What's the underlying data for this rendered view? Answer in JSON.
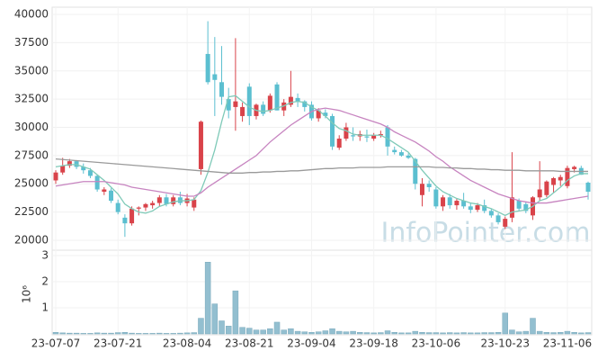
{
  "chart_data": {
    "type": "candlestick",
    "watermark": "InfoPointer.com",
    "categories": [
      "23-07-07",
      null,
      null,
      null,
      null,
      null,
      null,
      null,
      null,
      "23-07-21",
      null,
      null,
      null,
      null,
      null,
      null,
      null,
      null,
      null,
      "23-08-04",
      null,
      null,
      null,
      null,
      null,
      null,
      null,
      null,
      "23-08-21",
      null,
      null,
      null,
      null,
      null,
      null,
      null,
      null,
      "23-09-04",
      null,
      null,
      null,
      null,
      null,
      null,
      null,
      null,
      "23-09-18",
      null,
      null,
      null,
      null,
      null,
      null,
      null,
      null,
      "23-10-06",
      null,
      null,
      null,
      null,
      null,
      null,
      null,
      null,
      null,
      "23-10-23",
      null,
      null,
      null,
      null,
      null,
      null,
      null,
      null,
      "23-11-06",
      null,
      null,
      null
    ],
    "open": [
      25300,
      26000,
      26600,
      27000,
      26500,
      26200,
      25700,
      24300,
      24400,
      23300,
      22000,
      21500,
      22800,
      22900,
      23100,
      23300,
      23800,
      23200,
      23800,
      23300,
      22900,
      26300,
      36500,
      34700,
      34000,
      32500,
      31800,
      31000,
      33600,
      31000,
      32000,
      31500,
      33800,
      31500,
      32000,
      32600,
      32300,
      32000,
      30800,
      31300,
      31000,
      28200,
      29000,
      29300,
      29200,
      29200,
      29000,
      29300,
      30000,
      28000,
      27800,
      27500,
      27200,
      24000,
      25000,
      24500,
      23000,
      23800,
      23100,
      23500,
      23000,
      22700,
      23100,
      22600,
      22200,
      21200,
      22000,
      23500,
      23200,
      22200,
      23800,
      24000,
      24900,
      25300,
      24800,
      26300,
      26400,
      25100
    ],
    "high": [
      26200,
      27300,
      27200,
      27100,
      26800,
      26400,
      25800,
      24700,
      24600,
      23600,
      22300,
      23000,
      23000,
      23300,
      23500,
      24000,
      24100,
      24000,
      24300,
      24100,
      23800,
      30600,
      39400,
      38000,
      37200,
      33500,
      37900,
      32200,
      33900,
      32100,
      32300,
      33000,
      34000,
      32500,
      35000,
      33000,
      32400,
      32300,
      31700,
      31600,
      31200,
      29300,
      30400,
      30000,
      29700,
      29800,
      29500,
      29700,
      30200,
      28300,
      28000,
      27700,
      27300,
      25500,
      25300,
      24700,
      24000,
      24100,
      23700,
      24200,
      23300,
      23300,
      23600,
      22800,
      22400,
      22100,
      27800,
      23700,
      23400,
      23900,
      27000,
      25300,
      25600,
      25800,
      26600,
      26600,
      26600,
      25200
    ],
    "low": [
      25000,
      25800,
      26400,
      26300,
      25900,
      25500,
      24300,
      24000,
      23300,
      22300,
      20300,
      21300,
      22200,
      22600,
      22800,
      23000,
      23000,
      23000,
      23100,
      23000,
      22600,
      25800,
      33800,
      31000,
      32000,
      30800,
      29700,
      30500,
      30200,
      30700,
      31000,
      31300,
      31500,
      31000,
      31800,
      31800,
      31400,
      30600,
      30500,
      30800,
      28000,
      28000,
      28800,
      28800,
      28800,
      28700,
      28800,
      29100,
      27500,
      27600,
      27400,
      27200,
      24500,
      23000,
      24300,
      22800,
      22600,
      22800,
      22700,
      22800,
      22400,
      22500,
      22400,
      22000,
      21400,
      21000,
      21600,
      22600,
      22400,
      21800,
      23500,
      23800,
      24200,
      24800,
      24600,
      26000,
      25800,
      23600
    ],
    "close": [
      26000,
      26600,
      27000,
      26500,
      26200,
      25700,
      24500,
      24500,
      23500,
      22500,
      21500,
      22800,
      22900,
      23200,
      23300,
      23800,
      23200,
      23800,
      23300,
      23700,
      23600,
      30500,
      34000,
      34200,
      32700,
      31500,
      32300,
      31800,
      31000,
      32000,
      31200,
      32800,
      31500,
      32200,
      32700,
      32300,
      31800,
      30800,
      31500,
      31000,
      28300,
      29000,
      30000,
      29200,
      29400,
      29100,
      29300,
      29400,
      28300,
      27800,
      27500,
      27300,
      25000,
      25000,
      24700,
      23000,
      23800,
      23100,
      23500,
      23000,
      22700,
      23100,
      22600,
      22200,
      21600,
      21900,
      23800,
      22800,
      22600,
      23800,
      24500,
      25200,
      25500,
      25600,
      26400,
      26500,
      25800,
      24300
    ],
    "up_color": "#d9434a",
    "down_color": "#5bbfd0",
    "ylim": [
      19120,
      40640
    ],
    "yticks": [
      20000,
      22500,
      25000,
      27500,
      30000,
      32500,
      35000,
      37500,
      40000
    ],
    "ma": [
      {
        "color": "#7fcab8",
        "values": [
          26500,
          26600,
          26700,
          26700,
          26500,
          26300,
          25800,
          25300,
          24700,
          24100,
          23200,
          22800,
          22500,
          22400,
          22600,
          23000,
          23200,
          23400,
          23500,
          23500,
          23600,
          24400,
          26000,
          28000,
          30500,
          32700,
          32800,
          32300,
          31800,
          31500,
          31400,
          31500,
          31700,
          31900,
          32200,
          32300,
          32200,
          31800,
          31500,
          31000,
          30400,
          29900,
          29700,
          29400,
          29300,
          29300,
          29300,
          29300,
          29000,
          28600,
          28200,
          27800,
          27000,
          26200,
          25500,
          24800,
          24300,
          24000,
          23700,
          23500,
          23300,
          23200,
          23000,
          22800,
          22500,
          22200,
          22500,
          22600,
          22700,
          23000,
          23500,
          23700,
          24200,
          24700,
          25300,
          25700,
          25900,
          25900
        ]
      },
      {
        "color": "#c784c0",
        "values": [
          24800,
          24900,
          25000,
          25100,
          25200,
          25200,
          25200,
          25200,
          25100,
          25000,
          24900,
          24700,
          24600,
          24500,
          24400,
          24300,
          24200,
          24100,
          24000,
          23900,
          23900,
          24200,
          24700,
          25100,
          25500,
          25900,
          26300,
          26700,
          27100,
          27500,
          28100,
          28700,
          29200,
          29700,
          30200,
          30600,
          31000,
          31400,
          31600,
          31700,
          31600,
          31500,
          31300,
          31100,
          30900,
          30700,
          30500,
          30300,
          30000,
          29600,
          29300,
          29000,
          28700,
          28300,
          27900,
          27400,
          27000,
          26500,
          26100,
          25700,
          25300,
          25000,
          24700,
          24400,
          24100,
          23900,
          23700,
          23500,
          23400,
          23300,
          23300,
          23300,
          23400,
          23500,
          23600,
          23700,
          23800,
          23900
        ]
      },
      {
        "color": "#9a9a9a",
        "values": [
          27200,
          27150,
          27100,
          27050,
          27000,
          26950,
          26900,
          26850,
          26800,
          26750,
          26700,
          26650,
          26600,
          26550,
          26500,
          26450,
          26400,
          26350,
          26300,
          26250,
          26200,
          26150,
          26100,
          26050,
          26000,
          25950,
          25950,
          25950,
          26000,
          26000,
          26050,
          26050,
          26100,
          26100,
          26150,
          26150,
          26200,
          26250,
          26300,
          26350,
          26350,
          26400,
          26400,
          26400,
          26450,
          26450,
          26450,
          26450,
          26500,
          26500,
          26500,
          26500,
          26500,
          26500,
          26500,
          26450,
          26450,
          26400,
          26400,
          26350,
          26350,
          26300,
          26300,
          26250,
          26250,
          26200,
          26200,
          26200,
          26150,
          26150,
          26150,
          26150,
          26150,
          26100,
          26100,
          26100,
          26100,
          26100
        ]
      }
    ],
    "volume": {
      "unit": "10⁶",
      "color": "#93bfd0",
      "ylim": [
        0,
        3
      ],
      "yticks": [
        1,
        2,
        3
      ],
      "values": [
        0.06,
        0.04,
        0.03,
        0.03,
        0.02,
        0.02,
        0.04,
        0.03,
        0.03,
        0.05,
        0.06,
        0.03,
        0.02,
        0.02,
        0.02,
        0.03,
        0.02,
        0.02,
        0.03,
        0.04,
        0.05,
        0.6,
        2.75,
        1.15,
        0.5,
        0.3,
        1.65,
        0.25,
        0.22,
        0.15,
        0.15,
        0.2,
        0.45,
        0.15,
        0.2,
        0.1,
        0.08,
        0.06,
        0.08,
        0.12,
        0.2,
        0.1,
        0.08,
        0.1,
        0.06,
        0.05,
        0.04,
        0.05,
        0.12,
        0.06,
        0.04,
        0.04,
        0.1,
        0.06,
        0.05,
        0.05,
        0.04,
        0.05,
        0.04,
        0.05,
        0.04,
        0.04,
        0.05,
        0.05,
        0.06,
        0.8,
        0.15,
        0.08,
        0.1,
        0.6,
        0.1,
        0.06,
        0.05,
        0.06,
        0.1,
        0.06,
        0.04,
        0.05
      ]
    }
  }
}
